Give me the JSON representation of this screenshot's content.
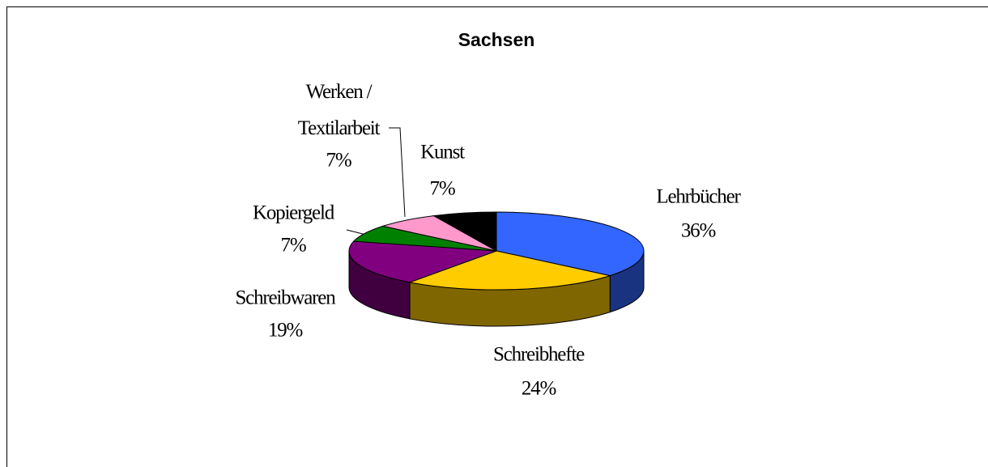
{
  "chart_data": {
    "type": "pie3d",
    "title": "Sachsen",
    "categories": [
      "Lehrbücher",
      "Schreibhefte",
      "Schreibwaren",
      "Kopiergeld",
      "Werken / Textilarbeit",
      "Kunst"
    ],
    "values": [
      36,
      24,
      19,
      7,
      7,
      7
    ],
    "value_labels": [
      "36%",
      "24%",
      "19%",
      "7%",
      "7%",
      "7%"
    ],
    "colors": [
      "#3366ff",
      "#ffcc00",
      "#800080",
      "#008000",
      "#ff99cc",
      "#000000"
    ]
  }
}
